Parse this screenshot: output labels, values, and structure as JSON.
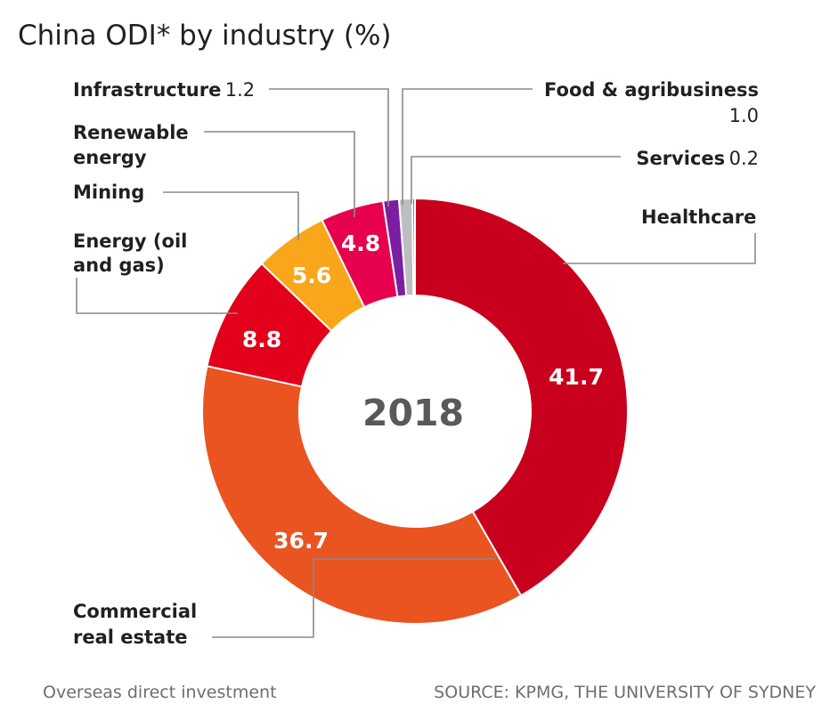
{
  "chart_data": {
    "type": "pie",
    "variant": "donut",
    "title": "China ODI* by industry (%)",
    "center_label": "2018",
    "series": [
      {
        "name": "Healthcare",
        "value": 41.7,
        "color": "#c8001d"
      },
      {
        "name": "Commercial real estate",
        "value": 36.7,
        "color": "#e95420"
      },
      {
        "name": "Energy (oil and gas)",
        "value": 8.8,
        "color": "#e2001a"
      },
      {
        "name": "Mining",
        "value": 5.6,
        "color": "#f9a61a"
      },
      {
        "name": "Renewable energy",
        "value": 4.8,
        "color": "#e6004e"
      },
      {
        "name": "Infrastructure",
        "value": 1.2,
        "color": "#7b1fa2"
      },
      {
        "name": "Food & agribusiness",
        "value": 1.0,
        "color": "#bcbec0"
      },
      {
        "name": "Services",
        "value": 0.2,
        "color": "#6d6e71"
      }
    ],
    "labels": {
      "healthcare": "Healthcare",
      "commercial_line1": "Commercial",
      "commercial_line2": "real estate",
      "energy_line1": "Energy (oil",
      "energy_line2": "and gas)",
      "mining": "Mining",
      "renewable_line1": "Renewable",
      "renewable_line2": "energy",
      "infrastructure": "Infrastructure",
      "infrastructure_value": "1.2",
      "food": "Food & agribusiness",
      "food_value": "1.0",
      "services": "Services",
      "services_value": "0.2"
    },
    "slice_labels": {
      "healthcare": "41.7",
      "commercial": "36.7",
      "energy": "8.8",
      "mining": "5.6",
      "renewable": "4.8"
    }
  },
  "footer": {
    "footnote": "Overseas direct investment",
    "source": "SOURCE: KPMG, THE UNIVERSITY OF SYDNEY"
  }
}
